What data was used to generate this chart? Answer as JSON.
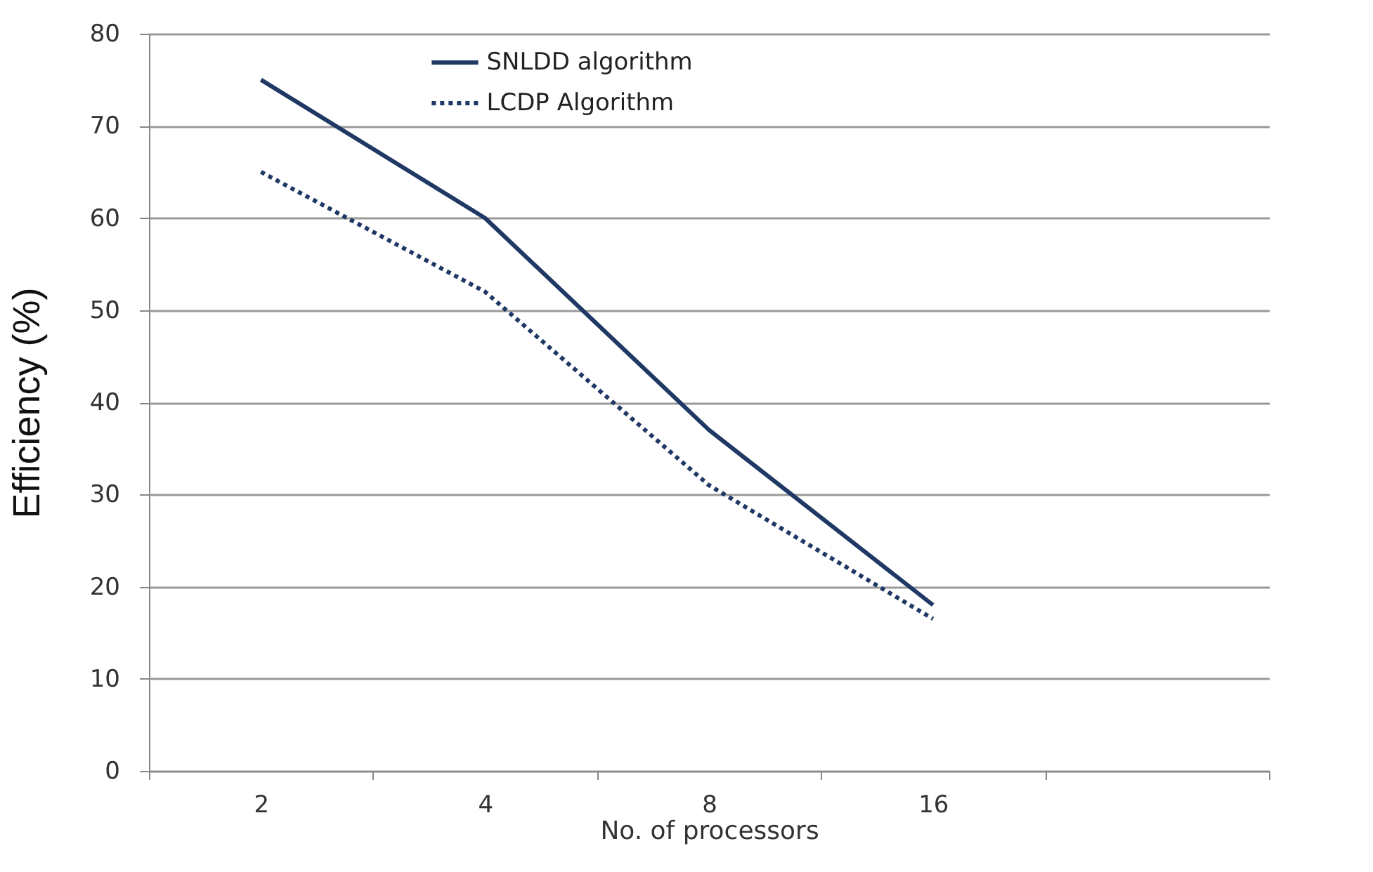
{
  "chart_data": {
    "type": "line",
    "xlabel": "No. of processors",
    "ylabel": "Efficiency (%)",
    "categories": [
      "2",
      "4",
      "8",
      "16",
      null
    ],
    "series": [
      {
        "name": "SNLDD algorithm",
        "color": "#1f3864",
        "line_style": "solid",
        "values": [
          75,
          60,
          37,
          18,
          null
        ]
      },
      {
        "name": "LCDP Algorithm",
        "color": "#1f3864",
        "line_style": "dotted",
        "values": [
          65,
          52,
          31,
          16.5,
          null
        ]
      }
    ],
    "ylim": [
      0,
      80
    ],
    "yticks": [
      0,
      10,
      20,
      30,
      40,
      50,
      60,
      70,
      80
    ],
    "grid": "y",
    "legend": "top",
    "marker": "none"
  }
}
